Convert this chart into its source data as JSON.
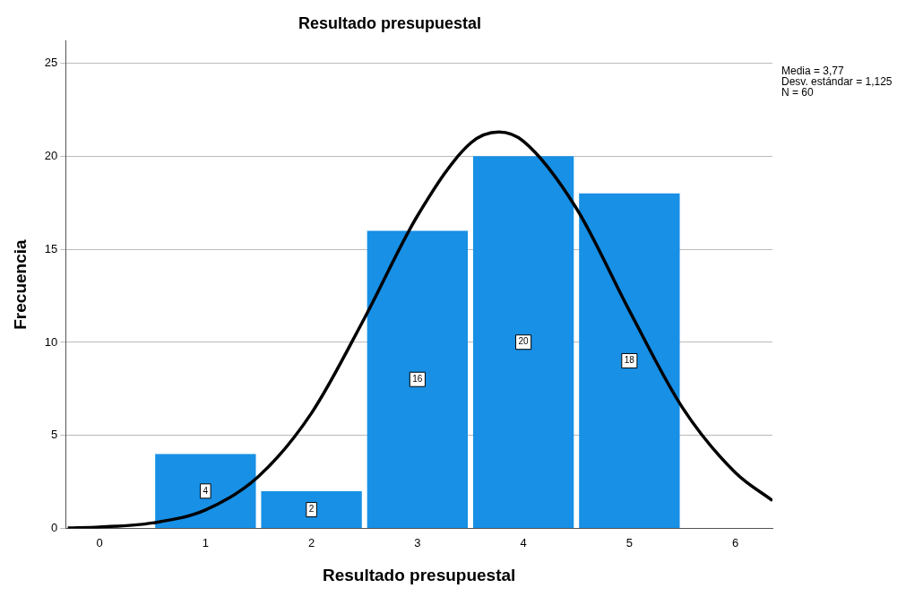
{
  "chart_data": {
    "type": "histogram",
    "title": "Resultado presupuestal",
    "xlabel": "Resultado presupuestal",
    "ylabel": "Frecuencia",
    "bins": [
      0.5,
      1.5,
      2.5,
      3.5,
      4.5,
      5.5
    ],
    "values": [
      4,
      2,
      16,
      20,
      18
    ],
    "color": "#1790e6",
    "value_labels": [
      "4",
      "2",
      "16",
      "20",
      "18"
    ],
    "series": [
      {
        "type": "line",
        "color": "#000000",
        "x": [
          -0.3,
          0,
          0.5,
          1,
          1.5,
          2,
          2.5,
          3,
          3.5,
          3.77,
          4,
          4.5,
          5,
          5.5,
          6,
          6.35
        ],
        "values": [
          0.03,
          0.08,
          0.3,
          1,
          2.8,
          6.2,
          11.3,
          16.8,
          20.7,
          21.3,
          20.8,
          17.2,
          11.7,
          6.5,
          3,
          1.5
        ]
      }
    ],
    "xlim": [
      -0.32,
      6.35
    ],
    "xticks": [
      0,
      1,
      2,
      3,
      4,
      5,
      6
    ],
    "ylim": [
      0,
      26.2
    ],
    "yticks": [
      0,
      5,
      10,
      15,
      20,
      25
    ],
    "grid": "y",
    "marker": "none",
    "line_style": "solid",
    "annotations": [
      "Media = 3,77",
      "Desv. estándar = 1,125",
      "N = 60"
    ]
  }
}
